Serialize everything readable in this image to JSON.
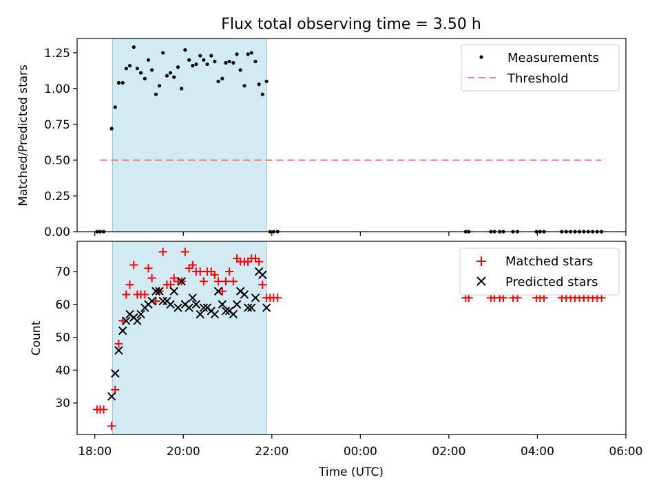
{
  "title": "Flux total observing time = 3.50 h",
  "x_axis": {
    "label": "Time (UTC)",
    "range_hours": [
      17.6,
      30.0
    ],
    "tick_values": [
      18,
      20,
      22,
      24,
      26,
      28,
      30
    ],
    "tick_labels": [
      "18:00",
      "20:00",
      "22:00",
      "00:00",
      "02:00",
      "04:00",
      "06:00"
    ]
  },
  "shaded_interval_hours": [
    18.4,
    21.88
  ],
  "chart_data": [
    {
      "type": "scatter",
      "panel": "top",
      "ylabel": "Matched/Predicted stars",
      "ylim": [
        0,
        1.35
      ],
      "y_ticks": [
        0.0,
        0.25,
        0.5,
        0.75,
        1.0,
        1.25
      ],
      "y_tick_labels": [
        "0.00",
        "0.25",
        "0.50",
        "0.75",
        "1.00",
        "1.25"
      ],
      "legend": {
        "position": "upper-right",
        "entries": [
          "Measurements",
          "Threshold"
        ]
      },
      "threshold": {
        "name": "Threshold",
        "value": 0.5,
        "x_range": [
          18.12,
          29.45
        ],
        "color": "#f08080"
      },
      "series": [
        {
          "name": "Measurements",
          "color": "#000000",
          "x": [
            18.05,
            18.12,
            18.2,
            18.38,
            18.46,
            18.54,
            18.63,
            18.71,
            18.79,
            18.88,
            18.96,
            19.04,
            19.13,
            19.21,
            19.29,
            19.38,
            19.46,
            19.54,
            19.63,
            19.71,
            19.79,
            19.88,
            19.96,
            20.04,
            20.13,
            20.21,
            20.29,
            20.38,
            20.46,
            20.54,
            20.63,
            20.71,
            20.79,
            20.88,
            20.96,
            21.04,
            21.13,
            21.21,
            21.29,
            21.38,
            21.46,
            21.54,
            21.63,
            21.71,
            21.79,
            21.88,
            21.96,
            22.04,
            22.13,
            26.38,
            26.45,
            26.95,
            27.03,
            27.15,
            27.23,
            27.45,
            27.55,
            27.98,
            28.06,
            28.15,
            28.55,
            28.65,
            28.75,
            28.85,
            28.95,
            29.05,
            29.15,
            29.25,
            29.35,
            29.45
          ],
          "y": [
            0.0,
            0.0,
            0.0,
            0.72,
            0.87,
            1.04,
            1.04,
            1.14,
            1.16,
            1.29,
            1.14,
            1.11,
            1.07,
            1.2,
            1.13,
            0.96,
            1.02,
            1.25,
            1.09,
            1.11,
            1.08,
            1.15,
            1.0,
            1.27,
            1.2,
            1.16,
            1.17,
            1.23,
            1.2,
            1.17,
            1.23,
            1.19,
            1.05,
            1.07,
            1.18,
            1.19,
            1.18,
            1.24,
            1.13,
            1.02,
            1.24,
            1.25,
            1.19,
            1.03,
            0.96,
            1.05,
            0.0,
            0.0,
            0.0,
            0.0,
            0.0,
            0.0,
            0.0,
            0.0,
            0.0,
            0.0,
            0.0,
            0.0,
            0.0,
            0.0,
            0.0,
            0.0,
            0.0,
            0.0,
            0.0,
            0.0,
            0.0,
            0.0,
            0.0,
            0.0
          ]
        }
      ]
    },
    {
      "type": "scatter",
      "panel": "bottom",
      "ylabel": "Count",
      "xlabel": "Time (UTC)",
      "ylim": [
        20.4,
        79.2
      ],
      "y_ticks": [
        30,
        40,
        50,
        60,
        70
      ],
      "y_tick_labels": [
        "30",
        "40",
        "50",
        "60",
        "70"
      ],
      "legend": {
        "position": "upper-right",
        "entries": [
          "Matched stars",
          "Predicted stars"
        ]
      },
      "series": [
        {
          "name": "Matched stars",
          "marker": "plus",
          "color": "#ff0000",
          "x": [
            18.05,
            18.12,
            18.2,
            18.38,
            18.46,
            18.54,
            18.63,
            18.71,
            18.79,
            18.88,
            18.96,
            19.04,
            19.13,
            19.21,
            19.29,
            19.38,
            19.46,
            19.54,
            19.63,
            19.71,
            19.79,
            19.88,
            19.96,
            20.04,
            20.13,
            20.21,
            20.29,
            20.38,
            20.46,
            20.54,
            20.63,
            20.71,
            20.79,
            20.88,
            20.96,
            21.04,
            21.13,
            21.21,
            21.29,
            21.38,
            21.46,
            21.54,
            21.63,
            21.71,
            21.79,
            21.88,
            21.96,
            22.04,
            22.13,
            26.38,
            26.45,
            26.95,
            27.03,
            27.15,
            27.23,
            27.45,
            27.55,
            27.98,
            28.06,
            28.15,
            28.55,
            28.65,
            28.75,
            28.85,
            28.95,
            29.05,
            29.15,
            29.25,
            29.35,
            29.45
          ],
          "y": [
            28,
            28,
            28,
            23,
            34,
            48,
            55,
            63,
            66,
            72,
            63,
            63,
            63,
            71,
            68,
            61,
            64,
            76,
            66,
            66,
            68,
            67,
            67,
            76,
            71,
            72,
            70,
            70,
            67,
            70,
            70,
            69,
            67,
            64,
            67,
            70,
            67,
            74,
            73,
            73,
            73,
            74,
            74,
            73,
            66,
            62,
            62,
            62,
            62,
            62,
            62,
            62,
            62,
            62,
            62,
            62,
            62,
            62,
            62,
            62,
            62,
            62,
            62,
            62,
            62,
            62,
            62,
            62,
            62,
            62
          ]
        },
        {
          "name": "Predicted stars",
          "marker": "x",
          "color": "#000000",
          "x": [
            18.38,
            18.46,
            18.54,
            18.63,
            18.71,
            18.79,
            18.88,
            18.96,
            19.04,
            19.13,
            19.21,
            19.29,
            19.38,
            19.46,
            19.54,
            19.63,
            19.71,
            19.79,
            19.88,
            19.96,
            20.04,
            20.13,
            20.21,
            20.29,
            20.38,
            20.46,
            20.54,
            20.63,
            20.71,
            20.79,
            20.88,
            20.96,
            21.04,
            21.13,
            21.21,
            21.29,
            21.38,
            21.46,
            21.54,
            21.63,
            21.71,
            21.79,
            21.88
          ],
          "y": [
            32,
            39,
            46,
            52,
            55,
            57,
            56,
            55,
            57,
            59,
            60,
            61,
            64,
            64,
            61,
            61,
            60,
            64,
            59,
            67,
            60,
            59,
            62,
            60,
            57,
            59,
            59,
            58,
            57,
            64,
            60,
            58,
            58,
            57,
            60,
            64,
            63,
            59,
            59,
            62,
            70,
            69,
            59
          ]
        }
      ]
    }
  ]
}
